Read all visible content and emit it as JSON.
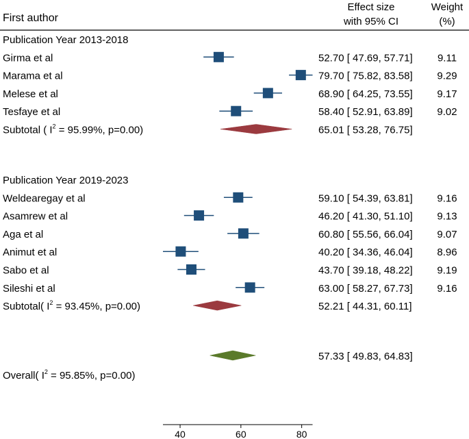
{
  "chart_data": {
    "type": "forest",
    "header": {
      "author_col": "First author",
      "effect_line1": "Effect size",
      "effect_line2": "with 95% CI",
      "weight_line1": "Weight",
      "weight_line2": "(%)"
    },
    "groups": [
      {
        "title": "Publication Year 2013-2018",
        "studies": [
          {
            "name": "Girma et al",
            "es": 52.7,
            "lo": 47.69,
            "hi": 57.71,
            "ci_text": "52.70 [ 47.69,  57.71]",
            "weight": "9.11"
          },
          {
            "name": "Marama et al",
            "es": 79.7,
            "lo": 75.82,
            "hi": 83.58,
            "ci_text": "79.70 [ 75.82,  83.58]",
            "weight": "9.29"
          },
          {
            "name": "Melese et al",
            "es": 68.9,
            "lo": 64.25,
            "hi": 73.55,
            "ci_text": "68.90 [ 64.25,  73.55]",
            "weight": "9.17"
          },
          {
            "name": "Tesfaye et al",
            "es": 58.4,
            "lo": 52.91,
            "hi": 63.89,
            "ci_text": "58.40 [ 52.91,  63.89]",
            "weight": "9.02"
          }
        ],
        "subtotal": {
          "prefix": "Subtotal ( ",
          "i2_text": " = 95.99%, p=0.00)",
          "es": 65.01,
          "lo": 53.28,
          "hi": 76.75,
          "ci_text": "65.01 [ 53.28,  76.75]"
        }
      },
      {
        "title": "Publication Year 2019-2023",
        "studies": [
          {
            "name": "Weldearegay et al",
            "es": 59.1,
            "lo": 54.39,
            "hi": 63.81,
            "ci_text": "59.10 [ 54.39,  63.81]",
            "weight": "9.16"
          },
          {
            "name": "Asamrew et al",
            "es": 46.2,
            "lo": 41.3,
            "hi": 51.1,
            "ci_text": "46.20 [ 41.30,  51.10]",
            "weight": "9.13"
          },
          {
            "name": "Aga et al",
            "es": 60.8,
            "lo": 55.56,
            "hi": 66.04,
            "ci_text": "60.80 [ 55.56,  66.04]",
            "weight": "9.07"
          },
          {
            "name": "Animut et al",
            "es": 40.2,
            "lo": 34.36,
            "hi": 46.04,
            "ci_text": "40.20 [ 34.36,  46.04]",
            "weight": "8.96"
          },
          {
            "name": "Sabo et al",
            "es": 43.7,
            "lo": 39.18,
            "hi": 48.22,
            "ci_text": "43.70 [ 39.18,  48.22]",
            "weight": "9.19"
          },
          {
            "name": "Sileshi et al",
            "es": 63.0,
            "lo": 58.27,
            "hi": 67.73,
            "ci_text": "63.00 [ 58.27,  67.73]",
            "weight": "9.16"
          }
        ],
        "subtotal": {
          "prefix": "Subtotal( ",
          "i2_text": " = 93.45%, p=0.00)",
          "es": 52.21,
          "lo": 44.31,
          "hi": 60.11,
          "ci_text": "52.21 [ 44.31,  60.11]"
        }
      }
    ],
    "overall": {
      "prefix": "Overall( ",
      "i2_text": " = 95.85%, p=0.00)",
      "es": 57.33,
      "lo": 49.83,
      "hi": 64.83,
      "ci_text": "57.33 [ 49.83,  64.83]"
    },
    "i2_letter": "I",
    "i2_sup": "2",
    "x_axis": {
      "range": [
        34.36,
        83.58
      ],
      "ticks": [
        40,
        60,
        80
      ],
      "tick_labels": [
        "40",
        "60",
        "80"
      ]
    },
    "colors": {
      "study_marker": "#1f4e79",
      "ci_line": "#1f4e79",
      "subtotal_diamond": "#9b3a3f",
      "overall_diamond": "#5a7a2a",
      "axis": "#000000",
      "rule": "#000000"
    }
  }
}
